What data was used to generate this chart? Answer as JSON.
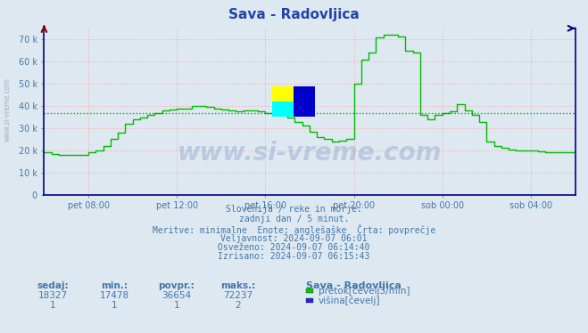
{
  "title": "Sava - Radovljica",
  "bg_color": "#dde8f0",
  "plot_bg_color": "#dde8f0",
  "line_color": "#00bb00",
  "avg_line_color": "#009900",
  "avg_value": 36654,
  "ymin": 0,
  "ymax": 75000,
  "yticks": [
    0,
    10000,
    20000,
    30000,
    40000,
    50000,
    60000,
    70000
  ],
  "ytick_labels": [
    "0",
    "10 k",
    "20 k",
    "30 k",
    "40 k",
    "50 k",
    "60 k",
    "70 k"
  ],
  "grid_color_h": "#ffaaaa",
  "grid_color_v": "#ffaaaa",
  "axis_color": "#000088",
  "text_color": "#4477aa",
  "title_color": "#2244aa",
  "watermark_text": "www.si-vreme.com",
  "watermark_color": "#2244aa",
  "side_label": "www.si-vreme.com",
  "info_lines": [
    "Slovenija / reke in morje.",
    "zadnji dan / 5 minut.",
    "Meritve: minimalne  Enote: anglešaške  Črta: povprečje",
    "Veljavnost: 2024-09-07 06:01",
    "Osveženo: 2024-09-07 06:14:40",
    "Izrisano: 2024-09-07 06:15:43"
  ],
  "table_headers": [
    "sedaj:",
    "min.:",
    "povpr.:",
    "maks.:"
  ],
  "table_values_row1": [
    "18327",
    "17478",
    "36654",
    "72237"
  ],
  "table_values_row2": [
    "1",
    "1",
    "1",
    "2"
  ],
  "legend_station": "Sava - Radovljica",
  "legend_items": [
    {
      "label": "pretok[čevelj3/min]",
      "color": "#00cc00"
    },
    {
      "label": "višina[čevelj]",
      "color": "#2222dd"
    }
  ],
  "x_tick_labels": [
    "pet 08:00",
    "pet 12:00",
    "pet 16:00",
    "pet 20:00",
    "sob 00:00",
    "sob 04:00"
  ],
  "time_series": [
    0,
    4,
    4,
    8,
    8,
    12,
    12,
    16,
    16,
    20,
    20,
    24,
    24,
    28,
    28,
    32,
    32,
    36,
    36,
    40,
    40,
    44,
    44,
    48,
    48,
    52,
    52,
    56,
    56,
    60,
    60,
    64,
    64,
    68,
    68,
    72,
    72,
    76,
    76,
    80,
    80,
    84,
    84,
    88,
    88,
    92,
    92,
    96,
    96,
    100,
    100,
    104,
    104,
    108,
    108,
    112,
    112,
    116,
    116,
    120,
    120,
    124,
    124,
    128,
    128,
    132,
    132,
    136,
    136,
    140,
    140,
    144,
    144,
    148,
    148,
    152,
    152,
    156,
    156,
    160,
    160,
    164,
    164,
    168,
    168,
    172,
    172,
    176,
    176,
    180,
    180,
    184,
    184,
    188,
    188,
    192,
    192,
    196,
    196,
    200,
    200,
    204,
    204,
    208,
    208,
    212,
    212,
    216,
    216,
    220,
    220,
    224,
    224,
    228,
    228,
    232,
    232,
    236,
    236,
    240,
    240,
    244,
    244,
    248,
    248,
    252,
    252,
    256,
    256,
    260,
    260,
    264,
    264,
    268,
    268,
    272,
    272,
    276,
    276,
    280,
    280,
    284,
    284,
    288
  ],
  "flow_series": [
    19000,
    19000,
    18500,
    18500,
    18000,
    18000,
    18000,
    18000,
    18000,
    18000,
    18000,
    18000,
    19000,
    19000,
    20000,
    20000,
    22000,
    22000,
    25000,
    25000,
    28000,
    28000,
    32000,
    32000,
    34000,
    34000,
    35000,
    35000,
    36000,
    36000,
    37000,
    37000,
    38000,
    38000,
    38500,
    38500,
    39000,
    39000,
    39000,
    39000,
    40000,
    40000,
    40000,
    40000,
    39500,
    39500,
    39000,
    39000,
    38500,
    38500,
    38000,
    38000,
    37500,
    37500,
    38000,
    38000,
    38000,
    38000,
    37500,
    37500,
    37000,
    37000,
    36500,
    36500,
    36000,
    36000,
    35000,
    35000,
    33000,
    33000,
    31000,
    31000,
    28500,
    28500,
    26000,
    26000,
    25000,
    25000,
    24000,
    24000,
    24500,
    24500,
    25000,
    25000,
    50000,
    50000,
    61000,
    61000,
    64000,
    64000,
    71000,
    71000,
    72000,
    72000,
    72000,
    72000,
    71500,
    71500,
    65000,
    65000,
    64000,
    64000,
    36000,
    36000,
    34000,
    34000,
    36000,
    36000,
    37000,
    37000,
    37500,
    37500,
    41000,
    41000,
    38000,
    38000,
    36000,
    36000,
    33000,
    33000,
    24000,
    24000,
    22000,
    22000,
    21000,
    21000,
    20500,
    20500,
    20000,
    20000,
    20000,
    20000,
    20000,
    20000,
    19500,
    19500,
    19000,
    19000,
    19000,
    19000,
    19000,
    19000,
    19000,
    19000
  ],
  "xlim": [
    0,
    288
  ]
}
